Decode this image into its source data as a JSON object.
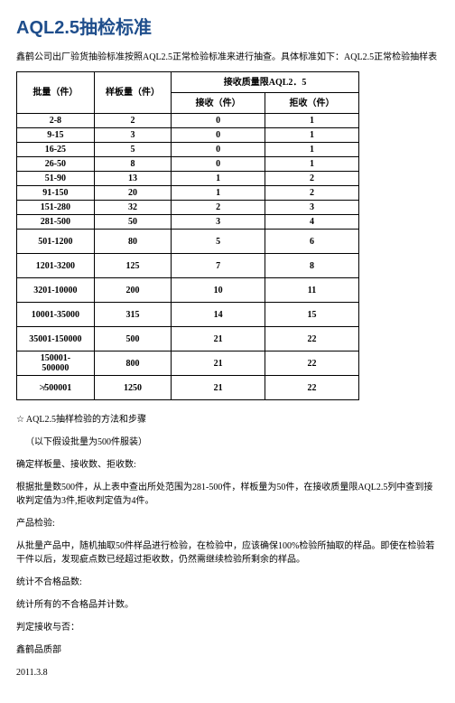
{
  "title": "AQL2.5抽检标准",
  "intro": "鑫鹤公司出厂验货抽验标准按照AQL2.5正常检验标准来进行抽查。具体标准如下：AQL2.5正常检验抽样表",
  "table": {
    "headers": {
      "batch": "批量（件）",
      "sample": "样板量（件）",
      "aql_group": "接收质量限AQL2．5",
      "accept": "接收（件）",
      "reject": "拒收（件）"
    },
    "rows": [
      {
        "batch": "2-8",
        "sample": "2",
        "accept": "0",
        "reject": "1",
        "narrow": true
      },
      {
        "batch": "9-15",
        "sample": "3",
        "accept": "0",
        "reject": "1",
        "narrow": true
      },
      {
        "batch": "16-25",
        "sample": "5",
        "accept": "0",
        "reject": "1",
        "narrow": true
      },
      {
        "batch": "26-50",
        "sample": "8",
        "accept": "0",
        "reject": "1",
        "narrow": true
      },
      {
        "batch": "51-90",
        "sample": "13",
        "accept": "1",
        "reject": "2",
        "narrow": true
      },
      {
        "batch": "91-150",
        "sample": "20",
        "accept": "1",
        "reject": "2",
        "narrow": true
      },
      {
        "batch": "151-280",
        "sample": "32",
        "accept": "2",
        "reject": "3",
        "narrow": true
      },
      {
        "batch": "281-500",
        "sample": "50",
        "accept": "3",
        "reject": "4",
        "narrow": true
      },
      {
        "batch": "501-1200",
        "sample": "80",
        "accept": "5",
        "reject": "6",
        "narrow": false
      },
      {
        "batch": "1201-3200",
        "sample": "125",
        "accept": "7",
        "reject": "8",
        "narrow": false
      },
      {
        "batch": "3201-10000",
        "sample": "200",
        "accept": "10",
        "reject": "11",
        "narrow": false
      },
      {
        "batch": "10001-35000",
        "sample": "315",
        "accept": "14",
        "reject": "15",
        "narrow": false
      },
      {
        "batch": "35001-150000",
        "sample": "500",
        "accept": "21",
        "reject": "22",
        "narrow": false
      },
      {
        "batch": "150001-500000",
        "sample": "800",
        "accept": "21",
        "reject": "22",
        "narrow": false,
        "twoLine": true
      },
      {
        "batch": "≯500001",
        "sample": "1250",
        "accept": "21",
        "reject": "22",
        "narrow": false
      }
    ]
  },
  "p1": "☆ AQL2.5抽样检验的方法和步骤",
  "p2": "（以下假设批量为500件服装）",
  "p3": "确定样板量、接收数、拒收数:",
  "p4": "根据批量数500件，从上表中查出所处范围为281-500件，样板量为50件，在接收质量限AQL2.5列中查到接收判定值为3件,拒收判定值为4件。",
  "p5": "产品检验:",
  "p6": "从批量产品中，随机抽取50件样品进行检验，在检验中，应该确保100%检验所抽取的样品。即使在检验若干件以后，发现疵点数已经超过拒收数，仍然需继续检验所剩余的样品。",
  "p7": "统计不合格品数:",
  "p8": "统计所有的不合格品并计数。",
  "p9": "判定接收与否：",
  "p10": "鑫鹤品质部",
  "p11": "2011.3.8"
}
